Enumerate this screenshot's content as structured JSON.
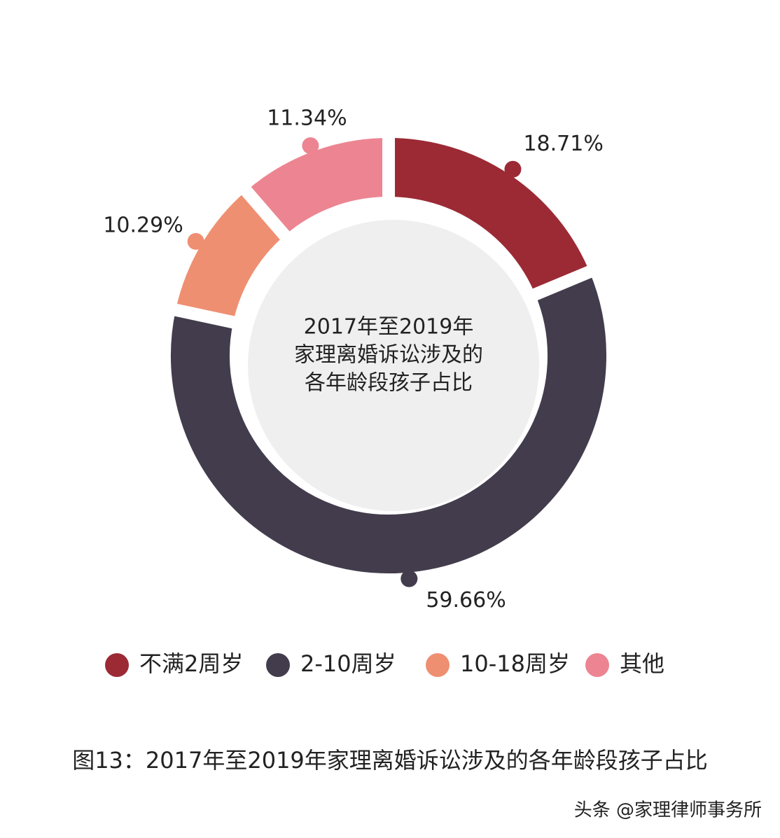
{
  "chart_data": {
    "type": "donut",
    "center_text": [
      "2017年至2019年",
      "家理离婚诉讼涉及的",
      "各年龄段孩子占比"
    ],
    "categories": [
      "不满2周岁",
      "2-10周岁",
      "10-18周岁",
      "其他"
    ],
    "values": [
      18.71,
      59.66,
      10.29,
      11.34
    ],
    "value_labels": [
      "18.71%",
      "59.66%",
      "10.29%",
      "11.34%"
    ],
    "colors": [
      "#9b2a35",
      "#433c4c",
      "#ef8f72",
      "#ec8591"
    ],
    "caption": "图13：2017年至2019年家理离婚诉讼涉及的各年龄段孩子占比",
    "watermark": "头条 @家理律师事务所"
  }
}
